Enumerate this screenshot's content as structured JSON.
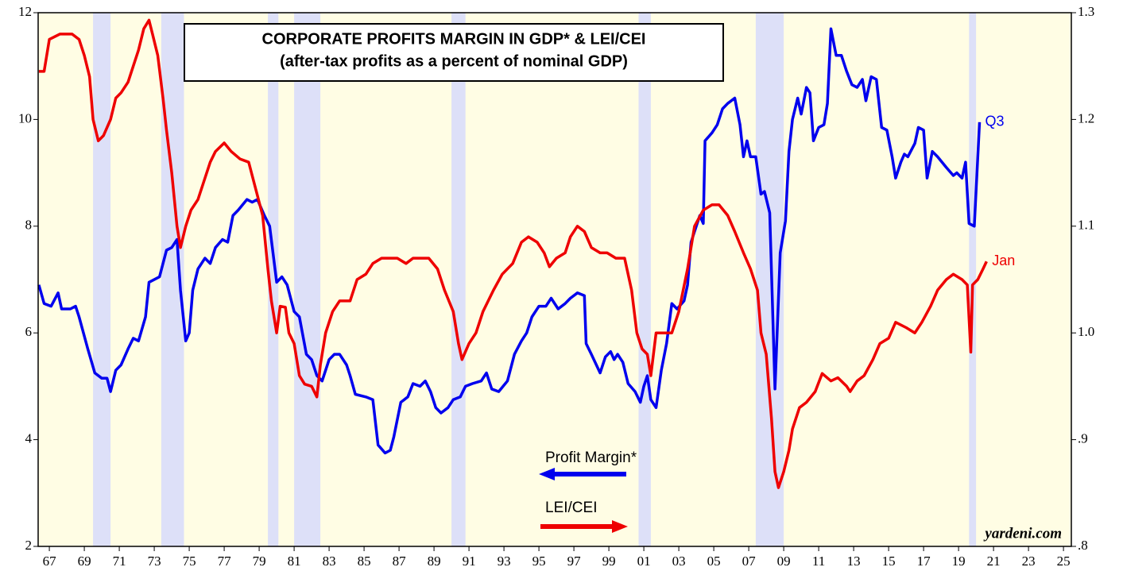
{
  "chart_data": {
    "type": "line",
    "title": "CORPORATE PROFITS MARGIN IN GDP* & LEI/CEI",
    "subtitle": "(after-tax profits as a percent of nominal GDP)",
    "source": "yardeni.com",
    "xlim": [
      1966.36,
      2025.45
    ],
    "xticks": [
      {
        "value": 1967,
        "label": "67"
      },
      {
        "value": 1969,
        "label": "69"
      },
      {
        "value": 1971,
        "label": "71"
      },
      {
        "value": 1973,
        "label": "73"
      },
      {
        "value": 1975,
        "label": "75"
      },
      {
        "value": 1977,
        "label": "77"
      },
      {
        "value": 1979,
        "label": "79"
      },
      {
        "value": 1981,
        "label": "81"
      },
      {
        "value": 1983,
        "label": "83"
      },
      {
        "value": 1985,
        "label": "85"
      },
      {
        "value": 1987,
        "label": "87"
      },
      {
        "value": 1989,
        "label": "89"
      },
      {
        "value": 1991,
        "label": "91"
      },
      {
        "value": 1993,
        "label": "93"
      },
      {
        "value": 1995,
        "label": "95"
      },
      {
        "value": 1997,
        "label": "97"
      },
      {
        "value": 1999,
        "label": "99"
      },
      {
        "value": 2001,
        "label": "01"
      },
      {
        "value": 2003,
        "label": "03"
      },
      {
        "value": 2005,
        "label": "05"
      },
      {
        "value": 2007,
        "label": "07"
      },
      {
        "value": 2009,
        "label": "09"
      },
      {
        "value": 2011,
        "label": "11"
      },
      {
        "value": 2013,
        "label": "13"
      },
      {
        "value": 2015,
        "label": "15"
      },
      {
        "value": 2017,
        "label": "17"
      },
      {
        "value": 2019,
        "label": "19"
      },
      {
        "value": 2021,
        "label": "21"
      },
      {
        "value": 2023,
        "label": "23"
      },
      {
        "value": 2025,
        "label": "25"
      }
    ],
    "ylim": [
      2,
      12
    ],
    "yticks": [
      2,
      4,
      6,
      8,
      10,
      12
    ],
    "y2lim": [
      0.8,
      1.3
    ],
    "y2ticks": [
      {
        "value": 0.8,
        "label": ".8"
      },
      {
        "value": 0.9,
        "label": ".9"
      },
      {
        "value": 1,
        "label": "1.0"
      },
      1.1,
      1.2,
      1.3
    ],
    "recessions": [
      [
        1969.5,
        1970.5
      ],
      [
        1973.4,
        1974.7
      ],
      [
        1979.5,
        1980.1
      ],
      [
        1981.0,
        1982.5
      ],
      [
        1990.0,
        1990.8
      ],
      [
        2000.7,
        2001.4
      ],
      [
        2007.4,
        2009.0
      ],
      [
        2019.6,
        2020.0
      ]
    ],
    "series": [
      {
        "name": "Profit Margin*",
        "color": "#0000ee",
        "axis": "y",
        "end_label": "Q3",
        "x": [
          1966.4,
          1966.7,
          1967.1,
          1967.5,
          1967.7,
          1968.2,
          1968.5,
          1968.7,
          1969.2,
          1969.6,
          1970.0,
          1970.3,
          1970.5,
          1970.8,
          1971.1,
          1971.5,
          1971.8,
          1972.1,
          1972.5,
          1972.7,
          1973.3,
          1973.7,
          1974.0,
          1974.3,
          1974.5,
          1974.8,
          1975.0,
          1975.2,
          1975.5,
          1975.9,
          1976.2,
          1976.5,
          1976.9,
          1977.2,
          1977.5,
          1977.8,
          1978.3,
          1978.6,
          1978.9,
          1979.3,
          1979.6,
          1980.0,
          1980.3,
          1980.6,
          1981.0,
          1981.3,
          1981.7,
          1982.0,
          1982.3,
          1982.6,
          1983.0,
          1983.3,
          1983.6,
          1984.0,
          1984.2,
          1984.5,
          1985.1,
          1985.5,
          1985.8,
          1986.2,
          1986.5,
          1986.7,
          1987.1,
          1987.5,
          1987.8,
          1988.2,
          1988.5,
          1988.8,
          1989.1,
          1989.4,
          1989.8,
          1990.1,
          1990.5,
          1990.8,
          1991.2,
          1991.7,
          1992.0,
          1992.3,
          1992.7,
          1993.2,
          1993.6,
          1994.0,
          1994.3,
          1994.6,
          1995.0,
          1995.4,
          1995.7,
          1996.1,
          1996.5,
          1996.8,
          1997.2,
          1997.6,
          1997.7,
          1998.0,
          1998.5,
          1998.8,
          1999.1,
          1999.3,
          1999.5,
          1999.8,
          2000.1,
          2000.5,
          2000.8,
          2001.0,
          2001.2,
          2001.4,
          2001.7,
          2002.0,
          2002.3,
          2002.6,
          2002.9,
          2003.3,
          2003.5,
          2003.7,
          2004.0,
          2004.2,
          2004.4,
          2004.5,
          2004.9,
          2005.2,
          2005.5,
          2005.8,
          2006.2,
          2006.5,
          2006.7,
          2006.9,
          2007.1,
          2007.4,
          2007.7,
          2007.9,
          2008.2,
          2008.5,
          2008.8,
          2009.1,
          2009.3,
          2009.5,
          2009.8,
          2010.0,
          2010.3,
          2010.5,
          2010.7,
          2011.0,
          2011.3,
          2011.5,
          2011.7,
          2012.0,
          2012.3,
          2012.6,
          2012.9,
          2013.2,
          2013.5,
          2013.7,
          2014.0,
          2014.3,
          2014.6,
          2014.9,
          2015.2,
          2015.4,
          2015.7,
          2015.9,
          2016.1,
          2016.5,
          2016.7,
          2017.0,
          2017.2,
          2017.5,
          2017.8,
          2018.3,
          2018.7,
          2018.9,
          2019.2,
          2019.4,
          2019.6,
          2019.9,
          2020.2
        ],
        "values": [
          6.9,
          6.55,
          6.5,
          6.75,
          6.45,
          6.45,
          6.5,
          6.3,
          5.7,
          5.25,
          5.15,
          5.15,
          4.9,
          5.3,
          5.4,
          5.7,
          5.9,
          5.85,
          6.3,
          6.95,
          7.05,
          7.55,
          7.6,
          7.75,
          6.8,
          5.85,
          6.0,
          6.8,
          7.2,
          7.4,
          7.3,
          7.6,
          7.75,
          7.7,
          8.2,
          8.3,
          8.5,
          8.45,
          8.5,
          8.2,
          8.0,
          6.95,
          7.05,
          6.9,
          6.4,
          6.3,
          5.6,
          5.5,
          5.2,
          5.1,
          5.5,
          5.6,
          5.6,
          5.4,
          5.2,
          4.85,
          4.8,
          4.75,
          3.9,
          3.75,
          3.8,
          4.05,
          4.7,
          4.8,
          5.05,
          5.0,
          5.1,
          4.9,
          4.6,
          4.5,
          4.6,
          4.75,
          4.8,
          5.0,
          5.05,
          5.1,
          5.25,
          4.95,
          4.9,
          5.1,
          5.6,
          5.85,
          6.0,
          6.3,
          6.5,
          6.5,
          6.65,
          6.45,
          6.55,
          6.65,
          6.75,
          6.7,
          5.8,
          5.6,
          5.25,
          5.55,
          5.65,
          5.5,
          5.6,
          5.45,
          5.05,
          4.9,
          4.7,
          5.0,
          5.2,
          4.75,
          4.6,
          5.3,
          5.8,
          6.55,
          6.45,
          6.6,
          6.9,
          7.7,
          8.0,
          8.2,
          8.05,
          9.6,
          9.75,
          9.9,
          10.2,
          10.3,
          10.4,
          9.9,
          9.3,
          9.6,
          9.3,
          9.3,
          8.6,
          8.65,
          8.25,
          4.95,
          7.5,
          8.1,
          9.4,
          10.0,
          10.4,
          10.1,
          10.6,
          10.5,
          9.6,
          9.85,
          9.9,
          10.3,
          11.7,
          11.2,
          11.2,
          10.9,
          10.65,
          10.6,
          10.75,
          10.35,
          10.8,
          10.75,
          9.85,
          9.8,
          9.3,
          8.9,
          9.2,
          9.35,
          9.3,
          9.55,
          9.85,
          9.8,
          8.9,
          9.4,
          9.3,
          9.1,
          8.95,
          9.0,
          8.9,
          9.2,
          8.05,
          8.0,
          9.95
        ]
      },
      {
        "name": "LEI/CEI",
        "color": "#ee0000",
        "axis": "y2",
        "end_label": "Jan",
        "x": [
          1966.4,
          1966.7,
          1967.0,
          1967.6,
          1968.3,
          1968.7,
          1969.0,
          1969.3,
          1969.5,
          1969.8,
          1970.1,
          1970.5,
          1970.8,
          1971.1,
          1971.5,
          1971.8,
          1972.1,
          1972.4,
          1972.7,
          1972.9,
          1973.2,
          1973.5,
          1973.7,
          1974.0,
          1974.3,
          1974.5,
          1974.8,
          1975.1,
          1975.5,
          1975.8,
          1976.2,
          1976.5,
          1977.0,
          1977.4,
          1977.9,
          1978.4,
          1978.8,
          1979.2,
          1979.5,
          1979.7,
          1980.0,
          1980.2,
          1980.5,
          1980.7,
          1981.0,
          1981.3,
          1981.6,
          1982.0,
          1982.3,
          1982.5,
          1982.8,
          1983.2,
          1983.6,
          1984.2,
          1984.6,
          1985.1,
          1985.5,
          1986.0,
          1986.5,
          1986.9,
          1987.4,
          1987.8,
          1988.3,
          1988.7,
          1989.2,
          1989.6,
          1990.1,
          1990.4,
          1990.6,
          1991.0,
          1991.4,
          1991.8,
          1992.4,
          1992.9,
          1993.5,
          1994.0,
          1994.4,
          1994.9,
          1995.3,
          1995.6,
          1996.0,
          1996.5,
          1996.8,
          1997.2,
          1997.6,
          1998.0,
          1998.5,
          1998.9,
          1999.4,
          1999.9,
          2000.3,
          2000.6,
          2000.9,
          2001.2,
          2001.4,
          2001.7,
          2002.1,
          2002.6,
          2003.0,
          2003.5,
          2003.9,
          2004.4,
          2004.9,
          2005.3,
          2005.8,
          2006.2,
          2006.7,
          2007.1,
          2007.5,
          2007.7,
          2008.0,
          2008.3,
          2008.5,
          2008.7,
          2009.0,
          2009.3,
          2009.5,
          2009.9,
          2010.3,
          2010.8,
          2011.2,
          2011.7,
          2012.1,
          2012.6,
          2012.8,
          2013.2,
          2013.6,
          2014.1,
          2014.5,
          2015.0,
          2015.4,
          2016.0,
          2016.5,
          2016.9,
          2017.4,
          2017.8,
          2018.3,
          2018.7,
          2019.2,
          2019.5,
          2019.7,
          2019.8,
          2020.1,
          2020.4,
          2020.6
        ],
        "values": [
          1.245,
          1.245,
          1.275,
          1.28,
          1.28,
          1.275,
          1.26,
          1.24,
          1.2,
          1.18,
          1.185,
          1.2,
          1.22,
          1.225,
          1.235,
          1.25,
          1.265,
          1.285,
          1.293,
          1.28,
          1.26,
          1.22,
          1.19,
          1.15,
          1.1,
          1.08,
          1.1,
          1.115,
          1.125,
          1.14,
          1.16,
          1.17,
          1.178,
          1.17,
          1.163,
          1.16,
          1.135,
          1.11,
          1.06,
          1.03,
          1.0,
          1.025,
          1.024,
          1.0,
          0.99,
          0.96,
          0.952,
          0.95,
          0.94,
          0.97,
          1.0,
          1.02,
          1.03,
          1.03,
          1.05,
          1.055,
          1.065,
          1.07,
          1.07,
          1.07,
          1.065,
          1.07,
          1.07,
          1.07,
          1.06,
          1.04,
          1.02,
          0.99,
          0.975,
          0.99,
          1.0,
          1.02,
          1.04,
          1.055,
          1.065,
          1.085,
          1.09,
          1.085,
          1.075,
          1.062,
          1.07,
          1.075,
          1.09,
          1.1,
          1.095,
          1.08,
          1.075,
          1.075,
          1.07,
          1.07,
          1.04,
          1.0,
          0.985,
          0.98,
          0.96,
          1.0,
          1.0,
          1.0,
          1.02,
          1.06,
          1.1,
          1.115,
          1.12,
          1.12,
          1.11,
          1.095,
          1.075,
          1.06,
          1.04,
          1.0,
          0.98,
          0.92,
          0.87,
          0.855,
          0.87,
          0.89,
          0.91,
          0.93,
          0.935,
          0.945,
          0.962,
          0.955,
          0.958,
          0.95,
          0.945,
          0.955,
          0.96,
          0.975,
          0.99,
          0.995,
          1.01,
          1.005,
          1.0,
          1.01,
          1.025,
          1.04,
          1.05,
          1.055,
          1.05,
          1.045,
          0.982,
          1.045,
          1.05,
          1.06,
          1.067
        ]
      }
    ]
  }
}
